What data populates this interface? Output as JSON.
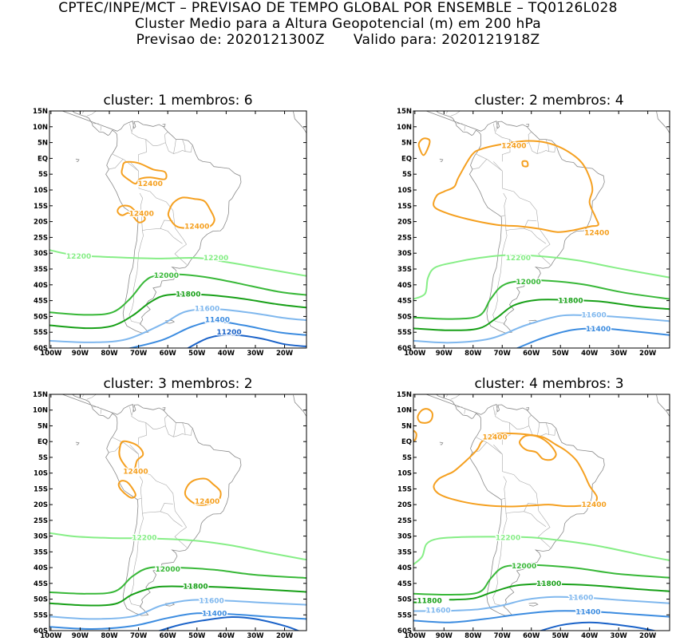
{
  "header": {
    "line1": "CPTEC/INPE/MCT – PREVISAO DE TEMPO GLOBAL POR ENSEMBLE – TQ0126L028",
    "line2": "Cluster Medio para a Altura Geopotencial (m) em 200 hPa",
    "line3a": "Previsao de: 2020121300Z",
    "line3b": "Valido para: 2020121918Z"
  },
  "axes": {
    "lat_labels": [
      "15N",
      "10N",
      "5N",
      "EQ",
      "5S",
      "10S",
      "15S",
      "20S",
      "25S",
      "30S",
      "35S",
      "40S",
      "45S",
      "50S",
      "55S",
      "60S"
    ],
    "lon_labels": [
      "100W",
      "90W",
      "80W",
      "70W",
      "60W",
      "50W",
      "40W",
      "30W",
      "20W"
    ]
  },
  "colors": {
    "c12400": "#f5a020",
    "c12200": "#86ee86",
    "c12000": "#38b838",
    "c11800": "#18a018",
    "c11600": "#80b8ee",
    "c11400": "#3c8ce0",
    "c11200": "#1a62c8"
  },
  "panels": [
    {
      "title": "cluster: 1   membros: 6",
      "labels": [
        {
          "text": "12400",
          "lon": -66,
          "lat": -8,
          "color": "#f5a020"
        },
        {
          "text": "12400",
          "lon": -69,
          "lat": -17.5,
          "color": "#f5a020"
        },
        {
          "text": "12400",
          "lon": -50,
          "lat": -21.5,
          "color": "#f5a020"
        },
        {
          "text": "12200",
          "lon": -90.5,
          "lat": -31,
          "color": "#86ee86"
        },
        {
          "text": "12200",
          "lon": -43.5,
          "lat": -31.5,
          "color": "#86ee86"
        },
        {
          "text": "12000",
          "lon": -60.5,
          "lat": -37,
          "color": "#38b838"
        },
        {
          "text": "11800",
          "lon": -53,
          "lat": -43,
          "color": "#18a018"
        },
        {
          "text": "11600",
          "lon": -46.5,
          "lat": -47.5,
          "color": "#80b8ee"
        },
        {
          "text": "11400",
          "lon": -43,
          "lat": -51,
          "color": "#3c8ce0"
        },
        {
          "text": "11200",
          "lon": -39,
          "lat": -55,
          "color": "#1a62c8"
        }
      ]
    },
    {
      "title": "cluster: 2   membros: 4",
      "labels": [
        {
          "text": "12400",
          "lon": -66,
          "lat": 4,
          "color": "#f5a020"
        },
        {
          "text": "12400",
          "lon": -37.5,
          "lat": -23.5,
          "color": "#f5a020"
        },
        {
          "text": "12200",
          "lon": -64.5,
          "lat": -31.5,
          "color": "#86ee86"
        },
        {
          "text": "12000",
          "lon": -61,
          "lat": -39,
          "color": "#38b838"
        },
        {
          "text": "11800",
          "lon": -46.5,
          "lat": -45,
          "color": "#18a018"
        },
        {
          "text": "11600",
          "lon": -38.5,
          "lat": -49.5,
          "color": "#80b8ee"
        },
        {
          "text": "11400",
          "lon": -37,
          "lat": -54,
          "color": "#3c8ce0"
        }
      ]
    },
    {
      "title": "cluster: 3   membros: 2",
      "labels": [
        {
          "text": "12400",
          "lon": -71,
          "lat": -9.5,
          "color": "#f5a020"
        },
        {
          "text": "12400",
          "lon": -46.5,
          "lat": -19,
          "color": "#f5a020"
        },
        {
          "text": "12200",
          "lon": -68,
          "lat": -30.5,
          "color": "#86ee86"
        },
        {
          "text": "12000",
          "lon": -60,
          "lat": -40.5,
          "color": "#38b838"
        },
        {
          "text": "11800",
          "lon": -50.5,
          "lat": -46,
          "color": "#18a018"
        },
        {
          "text": "11600",
          "lon": -45,
          "lat": -50.5,
          "color": "#80b8ee"
        },
        {
          "text": "11400",
          "lon": -44,
          "lat": -54.5,
          "color": "#3c8ce0"
        }
      ]
    },
    {
      "title": "cluster: 4   membros: 3",
      "labels": [
        {
          "text": "12400",
          "lon": -72.5,
          "lat": 1.5,
          "color": "#f5a020"
        },
        {
          "text": "12400",
          "lon": -38.5,
          "lat": -20,
          "color": "#f5a020"
        },
        {
          "text": "12200",
          "lon": -68,
          "lat": -30.5,
          "color": "#86ee86"
        },
        {
          "text": "12000",
          "lon": -62.5,
          "lat": -39.5,
          "color": "#38b838"
        },
        {
          "text": "11800",
          "lon": -54,
          "lat": -45,
          "color": "#18a018"
        },
        {
          "text": "11800",
          "lon": -95,
          "lat": -50.5,
          "color": "#18a018"
        },
        {
          "text": "11600",
          "lon": -92,
          "lat": -53.5,
          "color": "#80b8ee"
        },
        {
          "text": "11600",
          "lon": -43,
          "lat": -49.5,
          "color": "#80b8ee"
        },
        {
          "text": "11400",
          "lon": -40.5,
          "lat": -54,
          "color": "#3c8ce0"
        }
      ]
    }
  ]
}
